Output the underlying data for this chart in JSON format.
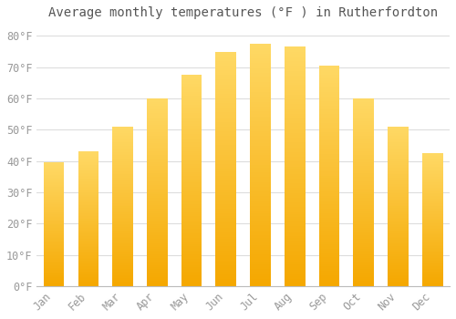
{
  "title": "Average monthly temperatures (°F ) in Rutherfordton",
  "months": [
    "Jan",
    "Feb",
    "Mar",
    "Apr",
    "May",
    "Jun",
    "Jul",
    "Aug",
    "Sep",
    "Oct",
    "Nov",
    "Dec"
  ],
  "values": [
    39.5,
    43,
    51,
    60,
    67.5,
    75,
    77.5,
    76.5,
    70.5,
    60,
    51,
    42.5
  ],
  "bar_color_bottom": "#F5A800",
  "bar_color_top": "#FFD966",
  "ylim": [
    0,
    83
  ],
  "yticks": [
    0,
    10,
    20,
    30,
    40,
    50,
    60,
    70,
    80
  ],
  "ytick_labels": [
    "0°F",
    "10°F",
    "20°F",
    "30°F",
    "40°F",
    "50°F",
    "60°F",
    "70°F",
    "80°F"
  ],
  "background_color": "#ffffff",
  "plot_bg_color": "#ffffff",
  "grid_color": "#dddddd",
  "title_fontsize": 10,
  "tick_fontsize": 8.5,
  "bar_width": 0.6
}
